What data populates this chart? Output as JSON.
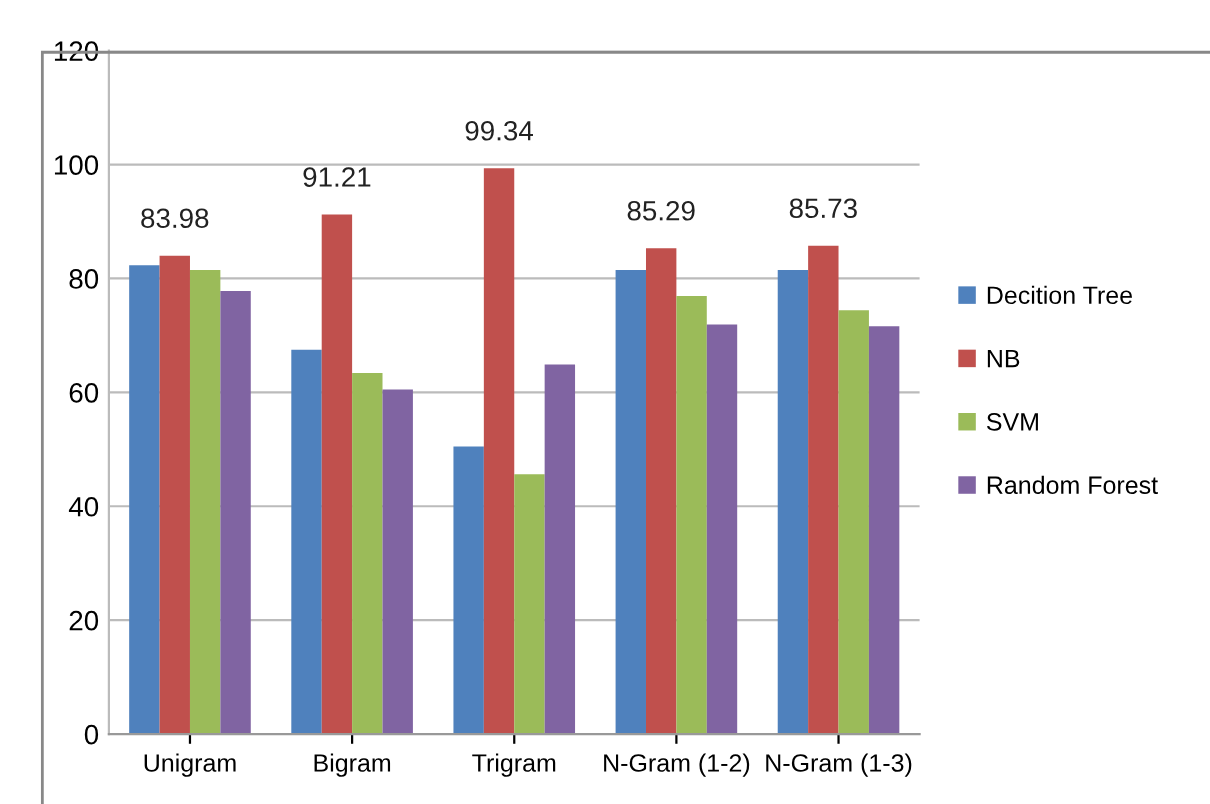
{
  "chart_data": {
    "type": "bar",
    "categories": [
      "Unigram",
      "Bigram",
      "Trigram",
      "N-Gram (1-2)",
      "N-Gram (1-3)"
    ],
    "series": [
      {
        "name": "Decition Tree",
        "color": "#4f81bd",
        "values": [
          82.3,
          67.5,
          50.5,
          81.5,
          81.5
        ]
      },
      {
        "name": "NB",
        "color": "#c0504d",
        "values": [
          83.98,
          91.21,
          99.34,
          85.29,
          85.73
        ],
        "value_labels": [
          "83.98",
          "91.21",
          "99.34",
          "85.29",
          "85.73"
        ]
      },
      {
        "name": "SVM",
        "color": "#9bbb59",
        "values": [
          81.5,
          63.4,
          45.6,
          76.9,
          74.4
        ]
      },
      {
        "name": "Random Forest",
        "color": "#8064a2",
        "values": [
          77.8,
          60.5,
          64.9,
          71.9,
          71.6
        ]
      }
    ],
    "ylim": [
      0,
      120
    ],
    "yticks": [
      0,
      20,
      40,
      60,
      80,
      100,
      120
    ],
    "grid": "y",
    "legend": "right"
  }
}
